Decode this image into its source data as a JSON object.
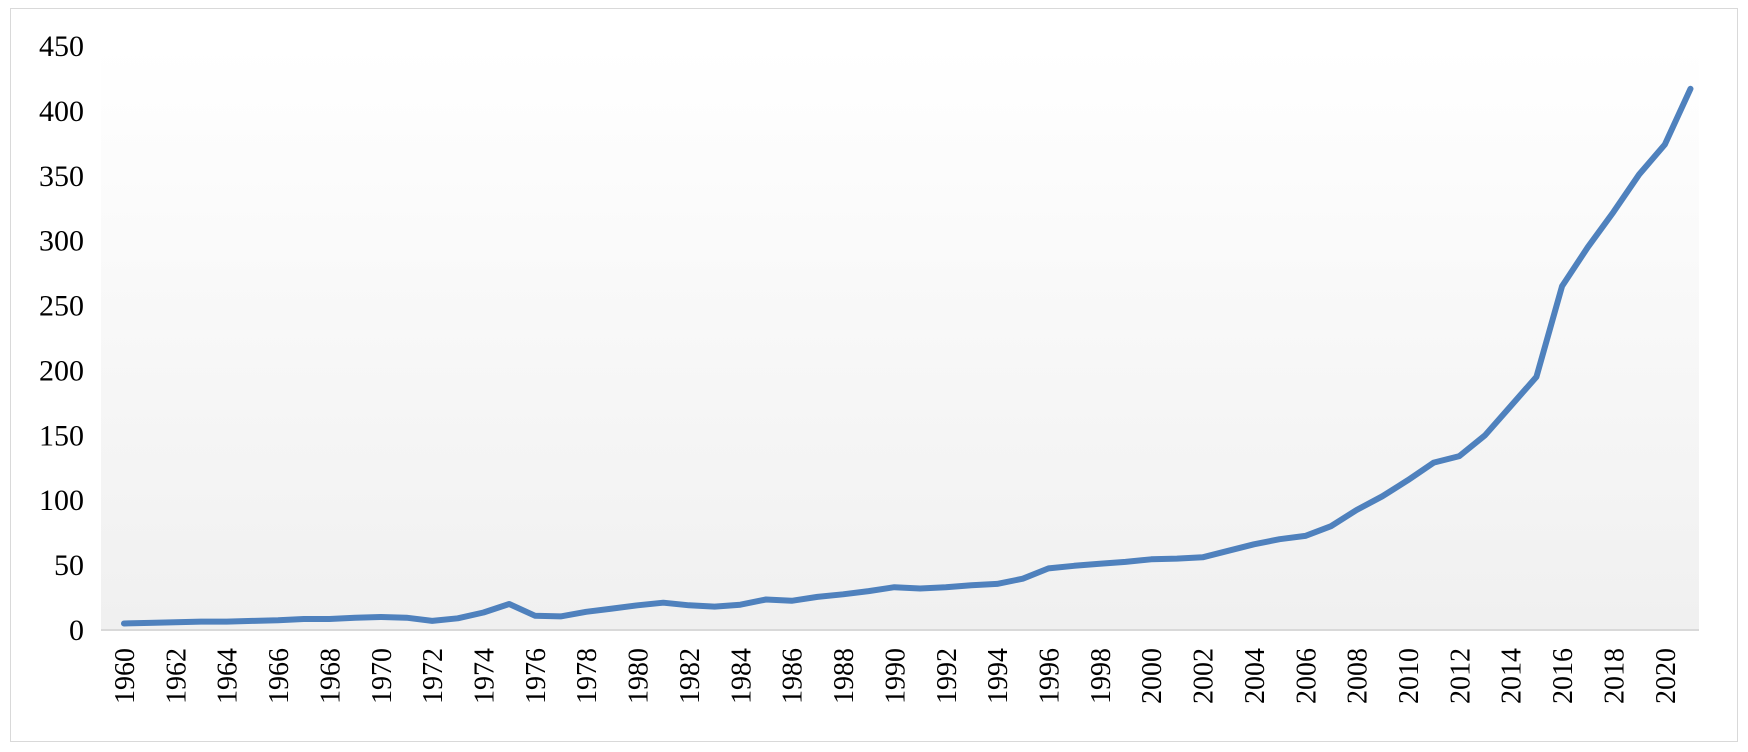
{
  "chart_data": {
    "type": "line",
    "title": "",
    "xlabel": "",
    "ylabel": "",
    "ylim": [
      0,
      450
    ],
    "yticks": [
      0,
      50,
      100,
      150,
      200,
      250,
      300,
      350,
      400,
      450
    ],
    "x": [
      1960,
      1961,
      1962,
      1963,
      1964,
      1965,
      1966,
      1967,
      1968,
      1969,
      1970,
      1971,
      1972,
      1973,
      1974,
      1975,
      1976,
      1977,
      1978,
      1979,
      1980,
      1981,
      1982,
      1983,
      1984,
      1985,
      1986,
      1987,
      1988,
      1989,
      1990,
      1991,
      1992,
      1993,
      1994,
      1995,
      1996,
      1997,
      1998,
      1999,
      2000,
      2001,
      2002,
      2003,
      2004,
      2005,
      2006,
      2007,
      2008,
      2009,
      2010,
      2011,
      2012,
      2013,
      2014,
      2015,
      2016,
      2017,
      2018,
      2019,
      2020,
      2021
    ],
    "x_tick_labels": [
      1960,
      1962,
      1964,
      1966,
      1968,
      1970,
      1972,
      1974,
      1976,
      1978,
      1980,
      1982,
      1984,
      1986,
      1988,
      1990,
      1992,
      1994,
      1996,
      1998,
      2000,
      2002,
      2004,
      2006,
      2008,
      2010,
      2012,
      2014,
      2016,
      2018,
      2020
    ],
    "series": [
      {
        "color": "#4f81bd",
        "values": [
          5,
          5.5,
          6,
          6.5,
          6.5,
          7,
          7.5,
          8.5,
          8.5,
          9.5,
          10,
          9.5,
          7,
          9,
          13.5,
          20,
          11,
          10.5,
          14,
          16.5,
          19,
          21,
          19,
          18,
          19.5,
          23.5,
          22.5,
          25.5,
          27.5,
          30,
          33,
          32,
          33,
          34.5,
          35.5,
          39.5,
          47.5,
          49.5,
          51,
          52.5,
          54.5,
          55,
          56,
          61,
          66,
          70,
          72.5,
          80,
          92.5,
          103,
          115.5,
          129,
          134,
          150,
          172.5,
          195,
          265,
          295,
          322,
          351,
          374,
          417
        ]
      }
    ],
    "grid": false,
    "legend": "none"
  }
}
